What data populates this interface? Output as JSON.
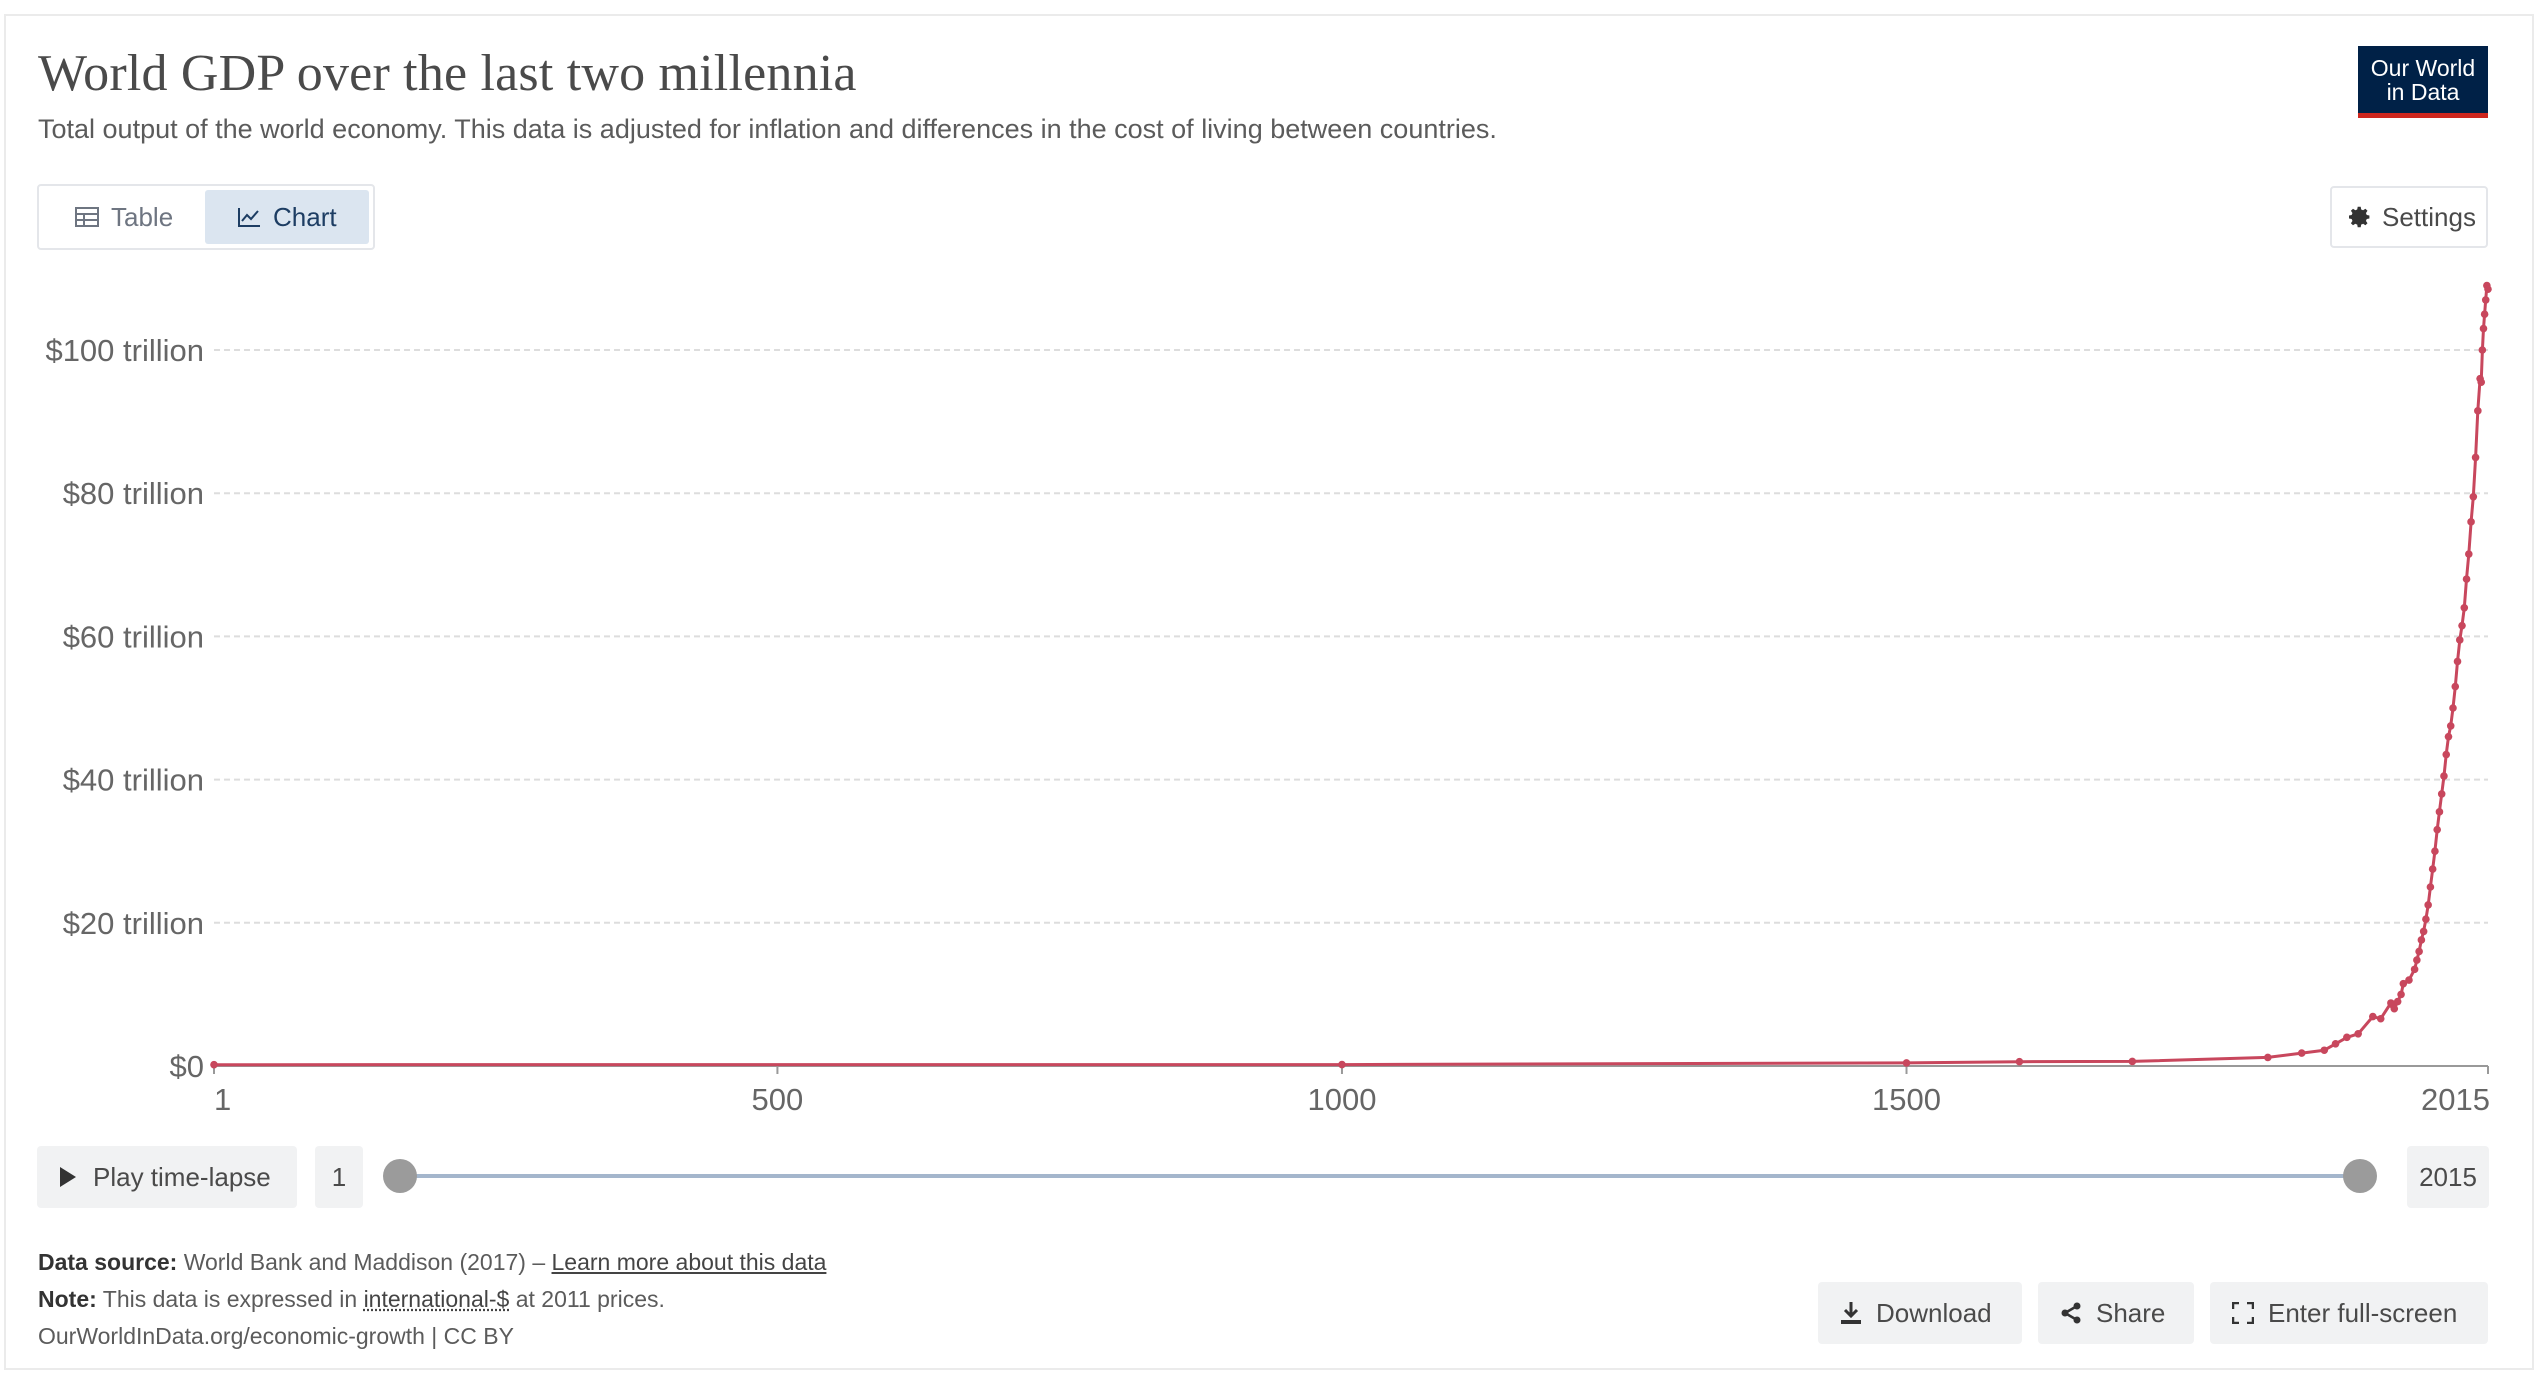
{
  "header": {
    "title": "World GDP over the last two millennia",
    "subtitle": "Total output of the world economy. This data is adjusted for inflation and differences in the cost of living between countries.",
    "logo_line1": "Our World",
    "logo_line2": "in Data"
  },
  "tabs": {
    "table_label": "Table",
    "chart_label": "Chart",
    "active": "chart"
  },
  "settings_label": "Settings",
  "timeline": {
    "play_label": "Play time-lapse",
    "start_year": "1",
    "end_year": "2015"
  },
  "footer": {
    "source_label": "Data source:",
    "source_text": "World Bank and Maddison (2017) – ",
    "source_link": "Learn more about this data",
    "note_label": "Note:",
    "note_text_before": "This data is expressed in ",
    "note_link": "international-$",
    "note_text_after": " at 2011 prices.",
    "attribution": "OurWorldInData.org/economic-growth | CC BY"
  },
  "actions": {
    "download_label": "Download",
    "share_label": "Share",
    "fullscreen_label": "Enter full-screen"
  },
  "colors": {
    "series": "#c8475d",
    "grid": "#dddddd",
    "axis": "#999999",
    "logo_bg": "#002147",
    "logo_accent": "#ce261e"
  },
  "icons": {
    "table": "table-icon",
    "chart": "line-chart-icon",
    "settings": "gear-icon",
    "play": "play-icon",
    "download": "download-icon",
    "share": "share-icon",
    "fullscreen": "expand-icon"
  },
  "chart_data": {
    "type": "line",
    "title": "World GDP over the last two millennia",
    "xlim": [
      1,
      2015
    ],
    "ylim": [
      0,
      110
    ],
    "x_ticks": [
      1,
      500,
      1000,
      1500,
      2015
    ],
    "x_tick_labels": [
      "1",
      "500",
      "1000",
      "1500",
      "2015"
    ],
    "y_ticks": [
      0,
      20,
      40,
      60,
      80,
      100
    ],
    "y_tick_labels": [
      "$0",
      "$20 trillion",
      "$40 trillion",
      "$60 trillion",
      "$80 trillion",
      "$100 trillion"
    ],
    "grid": true,
    "series": [
      {
        "values": [
          [
            1,
            0.18
          ],
          [
            1000,
            0.2
          ],
          [
            1500,
            0.43
          ],
          [
            1600,
            0.6
          ],
          [
            1700,
            0.64
          ],
          [
            1820,
            1.2
          ],
          [
            1850,
            1.8
          ],
          [
            1870,
            2.2
          ],
          [
            1880,
            3.1
          ],
          [
            1890,
            4.0
          ],
          [
            1900,
            4.5
          ],
          [
            1913,
            6.9
          ],
          [
            1920,
            6.6
          ],
          [
            1929,
            8.8
          ],
          [
            1930,
            8.6
          ],
          [
            1932,
            8.0
          ],
          [
            1935,
            9.0
          ],
          [
            1938,
            10.0
          ],
          [
            1940,
            11.5
          ],
          [
            1945,
            12.0
          ],
          [
            1950,
            13.5
          ],
          [
            1952,
            14.8
          ],
          [
            1954,
            16.0
          ],
          [
            1956,
            17.6
          ],
          [
            1958,
            18.8
          ],
          [
            1960,
            20.5
          ],
          [
            1962,
            22.5
          ],
          [
            1964,
            25.0
          ],
          [
            1966,
            27.5
          ],
          [
            1968,
            30.0
          ],
          [
            1970,
            33.0
          ],
          [
            1972,
            35.5
          ],
          [
            1974,
            38.0
          ],
          [
            1976,
            40.5
          ],
          [
            1978,
            43.5
          ],
          [
            1980,
            46.0
          ],
          [
            1982,
            47.5
          ],
          [
            1984,
            50.0
          ],
          [
            1986,
            53.0
          ],
          [
            1988,
            56.5
          ],
          [
            1990,
            59.5
          ],
          [
            1992,
            61.5
          ],
          [
            1994,
            64.0
          ],
          [
            1996,
            68.0
          ],
          [
            1998,
            71.5
          ],
          [
            2000,
            76.0
          ],
          [
            2002,
            79.5
          ],
          [
            2004,
            85.0
          ],
          [
            2006,
            91.5
          ],
          [
            2008,
            96.0
          ],
          [
            2009,
            95.5
          ],
          [
            2010,
            100.0
          ],
          [
            2011,
            103.0
          ],
          [
            2012,
            105.0
          ],
          [
            2013,
            107.0
          ],
          [
            2014,
            109.0
          ],
          [
            2015,
            108.5
          ]
        ]
      }
    ]
  }
}
